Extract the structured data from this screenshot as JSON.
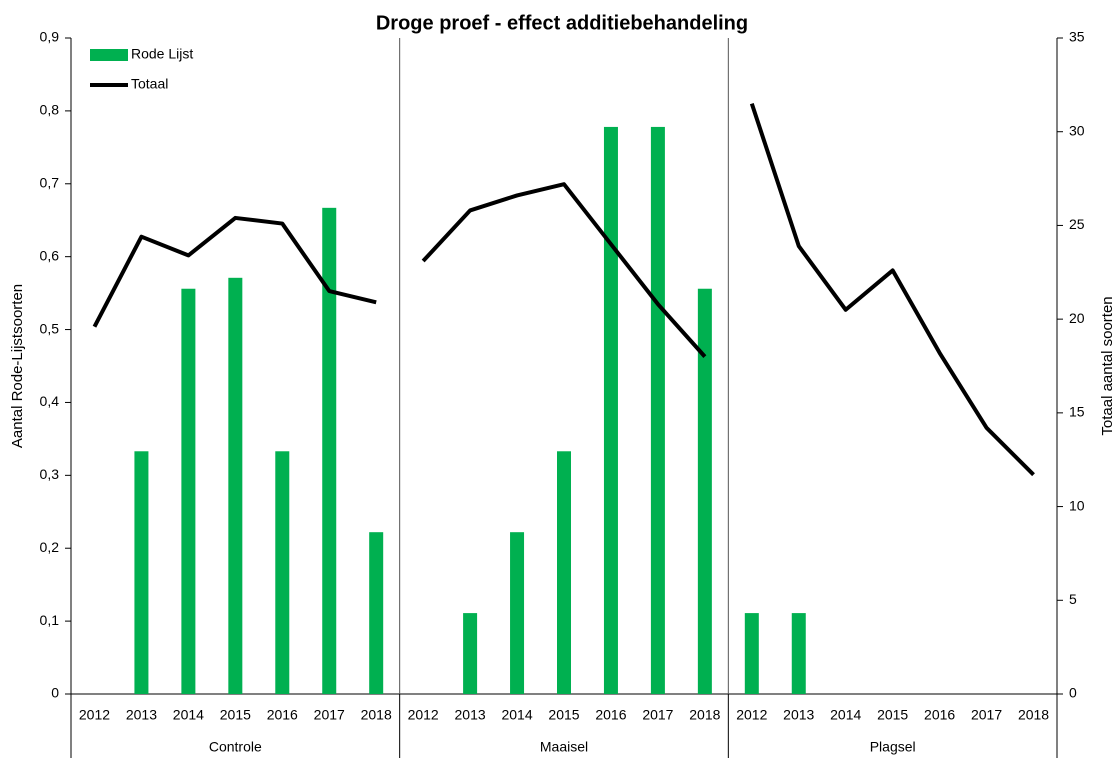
{
  "chart_data": {
    "type": "bar-line",
    "title": "Droge proef - effect additiebehandeling",
    "ylabel": "Aantal Rode-Lijstsoorten",
    "y2label": "Totaal aantal soorten",
    "groups": [
      {
        "name": "Controle",
        "categories": [
          "2012",
          "2013",
          "2014",
          "2015",
          "2016",
          "2017",
          "2018"
        ]
      },
      {
        "name": "Maaisel",
        "categories": [
          "2012",
          "2013",
          "2014",
          "2015",
          "2016",
          "2017",
          "2018"
        ]
      },
      {
        "name": "Plagsel",
        "categories": [
          "2012",
          "2013",
          "2014",
          "2015",
          "2016",
          "2017",
          "2018"
        ]
      }
    ],
    "series": [
      {
        "name": "Rode Lijst",
        "type": "bar",
        "color": "#00b050",
        "values": [
          [
            0,
            0.333,
            0.556,
            0.571,
            0.333,
            0.667,
            0.222
          ],
          [
            0,
            0.111,
            0.222,
            0.333,
            0.778,
            0.778,
            0.556
          ],
          [
            0.111,
            0.111,
            0,
            0,
            0,
            0,
            0
          ]
        ]
      },
      {
        "name": "Totaal",
        "type": "line",
        "axis": "y2",
        "color": "#000000",
        "values": [
          [
            19.6,
            24.4,
            23.4,
            25.4,
            25.1,
            21.5,
            20.9
          ],
          [
            23.1,
            25.8,
            26.6,
            27.2,
            24.0,
            20.8,
            18.0
          ],
          [
            31.5,
            23.9,
            20.5,
            22.6,
            18.2,
            14.2,
            11.7
          ]
        ]
      }
    ],
    "ylim": [
      0,
      0.9
    ],
    "yticks": [
      0,
      {
        "value": 0.1,
        "label": "0,1"
      },
      {
        "value": 0.2,
        "label": "0,2"
      },
      {
        "value": 0.3,
        "label": "0,3"
      },
      {
        "value": 0.4,
        "label": "0,4"
      },
      {
        "value": 0.5,
        "label": "0,5"
      },
      {
        "value": 0.6,
        "label": "0,6"
      },
      {
        "value": 0.7,
        "label": "0,7"
      },
      {
        "value": 0.8,
        "label": "0,8"
      },
      {
        "value": 0.9,
        "label": "0,9"
      }
    ],
    "y2lim": [
      0,
      35
    ],
    "y2ticks": [
      0,
      5,
      10,
      15,
      20,
      25,
      30,
      35
    ],
    "legend": "top-left"
  }
}
